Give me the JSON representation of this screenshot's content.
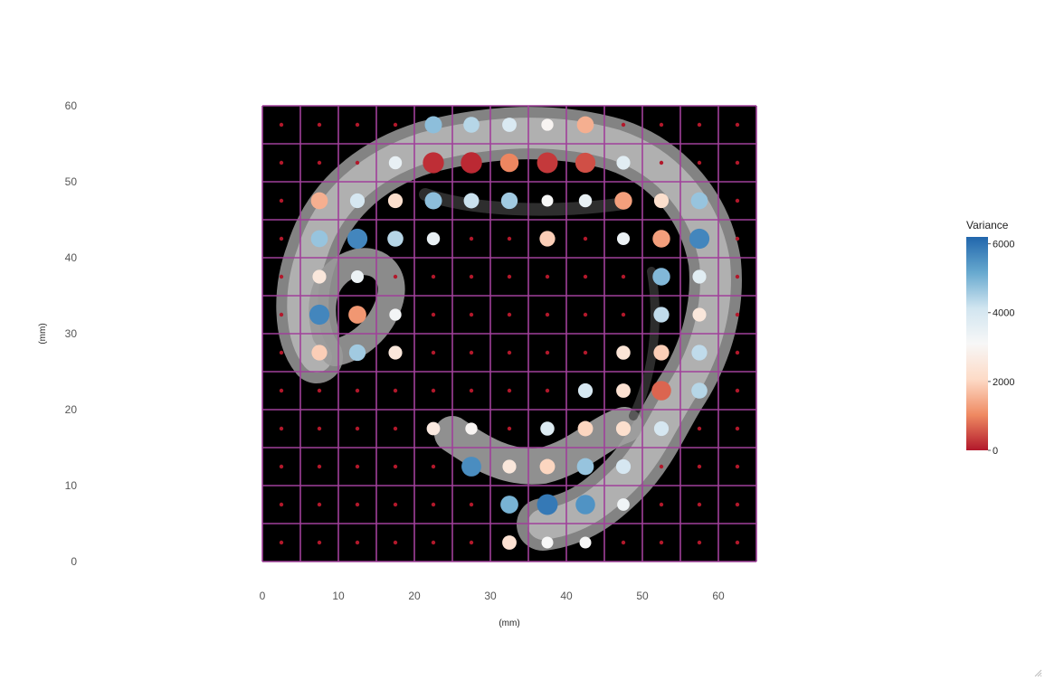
{
  "chart_data": {
    "type": "scatter",
    "xlabel": "(mm)",
    "ylabel": "(mm)",
    "xlim": [
      0,
      65
    ],
    "ylim": [
      0,
      60
    ],
    "xticks": [
      0,
      10,
      20,
      30,
      40,
      50,
      60
    ],
    "yticks": [
      0,
      10,
      20,
      30,
      40,
      50,
      60
    ],
    "grid_step": 5,
    "background_image": "grayscale CT slice of curled tissue section on black",
    "grid_color": "#a0409a",
    "colorbar": {
      "title": "Variance",
      "range": [
        0,
        6200
      ],
      "ticks": [
        0,
        2000,
        4000,
        6000
      ],
      "colors": [
        "#b2182b",
        "#ef8a62",
        "#fddbc7",
        "#f7f7f7",
        "#d1e5f0",
        "#67a9cf",
        "#2166ac"
      ],
      "position": "right"
    },
    "points": [
      [
        2.5,
        2.5,
        0
      ],
      [
        7.5,
        2.5,
        0
      ],
      [
        12.5,
        2.5,
        0
      ],
      [
        17.5,
        2.5,
        0
      ],
      [
        22.5,
        2.5,
        0
      ],
      [
        27.5,
        2.5,
        0
      ],
      [
        32.5,
        2.5,
        2300
      ],
      [
        37.5,
        2.5,
        3100
      ],
      [
        42.5,
        2.5,
        3100
      ],
      [
        47.5,
        2.5,
        0
      ],
      [
        52.5,
        2.5,
        0
      ],
      [
        57.5,
        2.5,
        0
      ],
      [
        62.5,
        2.5,
        0
      ],
      [
        2.5,
        7.5,
        0
      ],
      [
        7.5,
        7.5,
        0
      ],
      [
        12.5,
        7.5,
        0
      ],
      [
        17.5,
        7.5,
        0
      ],
      [
        22.5,
        7.5,
        0
      ],
      [
        27.5,
        7.5,
        0
      ],
      [
        32.5,
        7.5,
        5000
      ],
      [
        37.5,
        7.5,
        5900
      ],
      [
        42.5,
        7.5,
        5500
      ],
      [
        47.5,
        7.5,
        3300
      ],
      [
        52.5,
        7.5,
        0
      ],
      [
        57.5,
        7.5,
        0
      ],
      [
        62.5,
        7.5,
        0
      ],
      [
        2.5,
        12.5,
        0
      ],
      [
        7.5,
        12.5,
        0
      ],
      [
        12.5,
        12.5,
        0
      ],
      [
        17.5,
        12.5,
        0
      ],
      [
        22.5,
        12.5,
        0
      ],
      [
        27.5,
        12.5,
        5600
      ],
      [
        32.5,
        12.5,
        2500
      ],
      [
        37.5,
        12.5,
        2000
      ],
      [
        42.5,
        12.5,
        4700
      ],
      [
        47.5,
        12.5,
        4000
      ],
      [
        52.5,
        12.5,
        0
      ],
      [
        57.5,
        12.5,
        0
      ],
      [
        62.5,
        12.5,
        0
      ],
      [
        2.5,
        17.5,
        0
      ],
      [
        7.5,
        17.5,
        0
      ],
      [
        12.5,
        17.5,
        0
      ],
      [
        17.5,
        17.5,
        0
      ],
      [
        22.5,
        17.5,
        2600
      ],
      [
        27.5,
        17.5,
        3000
      ],
      [
        32.5,
        17.5,
        0
      ],
      [
        37.5,
        17.5,
        3800
      ],
      [
        42.5,
        17.5,
        2000
      ],
      [
        47.5,
        17.5,
        2200
      ],
      [
        52.5,
        17.5,
        4000
      ],
      [
        57.5,
        17.5,
        0
      ],
      [
        62.5,
        17.5,
        0
      ],
      [
        2.5,
        22.5,
        0
      ],
      [
        7.5,
        22.5,
        0
      ],
      [
        12.5,
        22.5,
        0
      ],
      [
        17.5,
        22.5,
        0
      ],
      [
        22.5,
        22.5,
        0
      ],
      [
        27.5,
        22.5,
        0
      ],
      [
        32.5,
        22.5,
        0
      ],
      [
        37.5,
        22.5,
        0
      ],
      [
        42.5,
        22.5,
        4000
      ],
      [
        47.5,
        22.5,
        2300
      ],
      [
        52.5,
        22.5,
        700
      ],
      [
        57.5,
        22.5,
        4400
      ],
      [
        62.5,
        22.5,
        0
      ],
      [
        2.5,
        27.5,
        0
      ],
      [
        7.5,
        27.5,
        1900
      ],
      [
        12.5,
        27.5,
        4600
      ],
      [
        17.5,
        27.5,
        2500
      ],
      [
        22.5,
        27.5,
        0
      ],
      [
        27.5,
        27.5,
        0
      ],
      [
        32.5,
        27.5,
        0
      ],
      [
        37.5,
        27.5,
        0
      ],
      [
        42.5,
        27.5,
        0
      ],
      [
        47.5,
        27.5,
        2400
      ],
      [
        52.5,
        27.5,
        1900
      ],
      [
        57.5,
        27.5,
        4300
      ],
      [
        62.5,
        27.5,
        0
      ],
      [
        2.5,
        32.5,
        0
      ],
      [
        7.5,
        32.5,
        5700
      ],
      [
        12.5,
        32.5,
        1200
      ],
      [
        17.5,
        32.5,
        3200
      ],
      [
        22.5,
        32.5,
        0
      ],
      [
        27.5,
        32.5,
        0
      ],
      [
        32.5,
        32.5,
        0
      ],
      [
        37.5,
        32.5,
        0
      ],
      [
        42.5,
        32.5,
        0
      ],
      [
        47.5,
        32.5,
        0
      ],
      [
        52.5,
        32.5,
        4300
      ],
      [
        57.5,
        32.5,
        2500
      ],
      [
        62.5,
        32.5,
        0
      ],
      [
        2.5,
        37.5,
        0
      ],
      [
        7.5,
        37.5,
        2500
      ],
      [
        12.5,
        37.5,
        3400
      ],
      [
        17.5,
        37.5,
        0
      ],
      [
        22.5,
        37.5,
        0
      ],
      [
        27.5,
        37.5,
        0
      ],
      [
        32.5,
        37.5,
        0
      ],
      [
        37.5,
        37.5,
        0
      ],
      [
        42.5,
        37.5,
        0
      ],
      [
        47.5,
        37.5,
        0
      ],
      [
        52.5,
        37.5,
        4900
      ],
      [
        57.5,
        37.5,
        3700
      ],
      [
        62.5,
        37.5,
        0
      ],
      [
        2.5,
        42.5,
        0
      ],
      [
        7.5,
        42.5,
        4700
      ],
      [
        12.5,
        42.5,
        5700
      ],
      [
        17.5,
        42.5,
        4400
      ],
      [
        22.5,
        42.5,
        3500
      ],
      [
        27.5,
        42.5,
        0
      ],
      [
        32.5,
        42.5,
        0
      ],
      [
        37.5,
        42.5,
        1900
      ],
      [
        42.5,
        42.5,
        0
      ],
      [
        47.5,
        42.5,
        3400
      ],
      [
        52.5,
        42.5,
        1300
      ],
      [
        57.5,
        42.5,
        5700
      ],
      [
        62.5,
        42.5,
        0
      ],
      [
        2.5,
        47.5,
        0
      ],
      [
        7.5,
        47.5,
        1500
      ],
      [
        12.5,
        47.5,
        4000
      ],
      [
        17.5,
        47.5,
        2200
      ],
      [
        22.5,
        47.5,
        4800
      ],
      [
        27.5,
        47.5,
        4200
      ],
      [
        32.5,
        47.5,
        4600
      ],
      [
        37.5,
        47.5,
        3100
      ],
      [
        42.5,
        47.5,
        3500
      ],
      [
        47.5,
        47.5,
        1300
      ],
      [
        52.5,
        47.5,
        2200
      ],
      [
        57.5,
        47.5,
        4700
      ],
      [
        62.5,
        47.5,
        0
      ],
      [
        2.5,
        52.5,
        0
      ],
      [
        7.5,
        52.5,
        0
      ],
      [
        12.5,
        52.5,
        0
      ],
      [
        17.5,
        52.5,
        3500
      ],
      [
        22.5,
        52.5,
        200
      ],
      [
        27.5,
        52.5,
        150
      ],
      [
        32.5,
        52.5,
        1000
      ],
      [
        37.5,
        52.5,
        300
      ],
      [
        42.5,
        52.5,
        500
      ],
      [
        47.5,
        52.5,
        3700
      ],
      [
        52.5,
        52.5,
        0
      ],
      [
        57.5,
        52.5,
        0
      ],
      [
        62.5,
        52.5,
        0
      ],
      [
        2.5,
        57.5,
        0
      ],
      [
        7.5,
        57.5,
        0
      ],
      [
        12.5,
        57.5,
        0
      ],
      [
        17.5,
        57.5,
        0
      ],
      [
        22.5,
        57.5,
        4800
      ],
      [
        27.5,
        57.5,
        4400
      ],
      [
        32.5,
        57.5,
        3900
      ],
      [
        37.5,
        57.5,
        3000
      ],
      [
        42.5,
        57.5,
        1500
      ],
      [
        47.5,
        57.5,
        0
      ],
      [
        52.5,
        57.5,
        0
      ],
      [
        57.5,
        57.5,
        0
      ],
      [
        62.5,
        57.5,
        0
      ]
    ]
  }
}
